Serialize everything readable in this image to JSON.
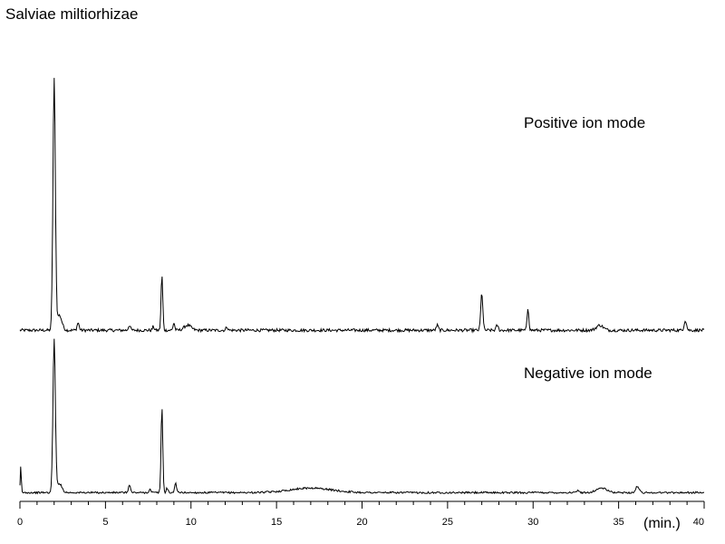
{
  "chart_data": {
    "type": "line",
    "title": "Salviae miltiorhizae",
    "xlabel": "(min.)",
    "ylabel": "",
    "xlim": [
      0,
      40
    ],
    "ylim": [
      0,
      100
    ],
    "x_ticks": [
      0,
      5,
      10,
      15,
      20,
      25,
      30,
      35,
      40
    ],
    "grid": false,
    "legend": "none",
    "series": [
      {
        "name": "Positive ion mode",
        "color": "#000000",
        "baseline": 1,
        "peaks": [
          {
            "t": 2.0,
            "h": 100,
            "w": 0.07
          },
          {
            "t": 2.3,
            "h": 6,
            "w": 0.15
          },
          {
            "t": 3.4,
            "h": 3,
            "w": 0.06
          },
          {
            "t": 6.4,
            "h": 2,
            "w": 0.06
          },
          {
            "t": 7.8,
            "h": 1.5,
            "w": 0.05
          },
          {
            "t": 8.3,
            "h": 22,
            "w": 0.05
          },
          {
            "t": 9.0,
            "h": 3,
            "w": 0.05
          },
          {
            "t": 9.8,
            "h": 2,
            "w": 0.2
          },
          {
            "t": 12.1,
            "h": 1.5,
            "w": 0.05
          },
          {
            "t": 24.4,
            "h": 2,
            "w": 0.06
          },
          {
            "t": 27.0,
            "h": 15,
            "w": 0.06
          },
          {
            "t": 27.9,
            "h": 2,
            "w": 0.06
          },
          {
            "t": 29.7,
            "h": 9,
            "w": 0.05
          },
          {
            "t": 33.9,
            "h": 2,
            "w": 0.2
          },
          {
            "t": 38.9,
            "h": 4,
            "w": 0.07
          }
        ]
      },
      {
        "name": "Negative ion mode",
        "color": "#000000",
        "baseline": 1,
        "peaks": [
          {
            "t": 0.05,
            "h": 17,
            "w": 0.03
          },
          {
            "t": 2.0,
            "h": 100,
            "w": 0.07
          },
          {
            "t": 2.3,
            "h": 6,
            "w": 0.15
          },
          {
            "t": 6.4,
            "h": 5,
            "w": 0.06
          },
          {
            "t": 7.6,
            "h": 2,
            "w": 0.06
          },
          {
            "t": 8.3,
            "h": 56,
            "w": 0.05
          },
          {
            "t": 8.6,
            "h": 3,
            "w": 0.05
          },
          {
            "t": 9.1,
            "h": 7,
            "w": 0.05
          },
          {
            "t": 17.0,
            "h": 3,
            "w": 1.2
          },
          {
            "t": 32.6,
            "h": 1.5,
            "w": 0.06
          },
          {
            "t": 34.0,
            "h": 3,
            "w": 0.3
          },
          {
            "t": 36.1,
            "h": 4,
            "w": 0.1
          }
        ]
      }
    ]
  }
}
